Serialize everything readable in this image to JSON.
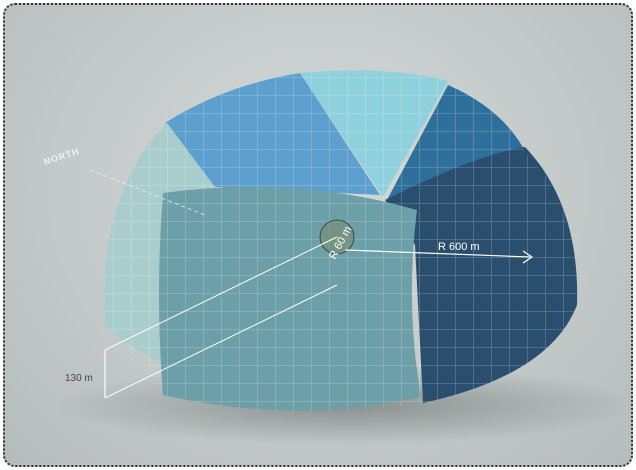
{
  "labels": {
    "north": "NORTH",
    "inner_radius": "R 60 m",
    "outer_radius": "R 600 m",
    "height": "130 m"
  }
}
